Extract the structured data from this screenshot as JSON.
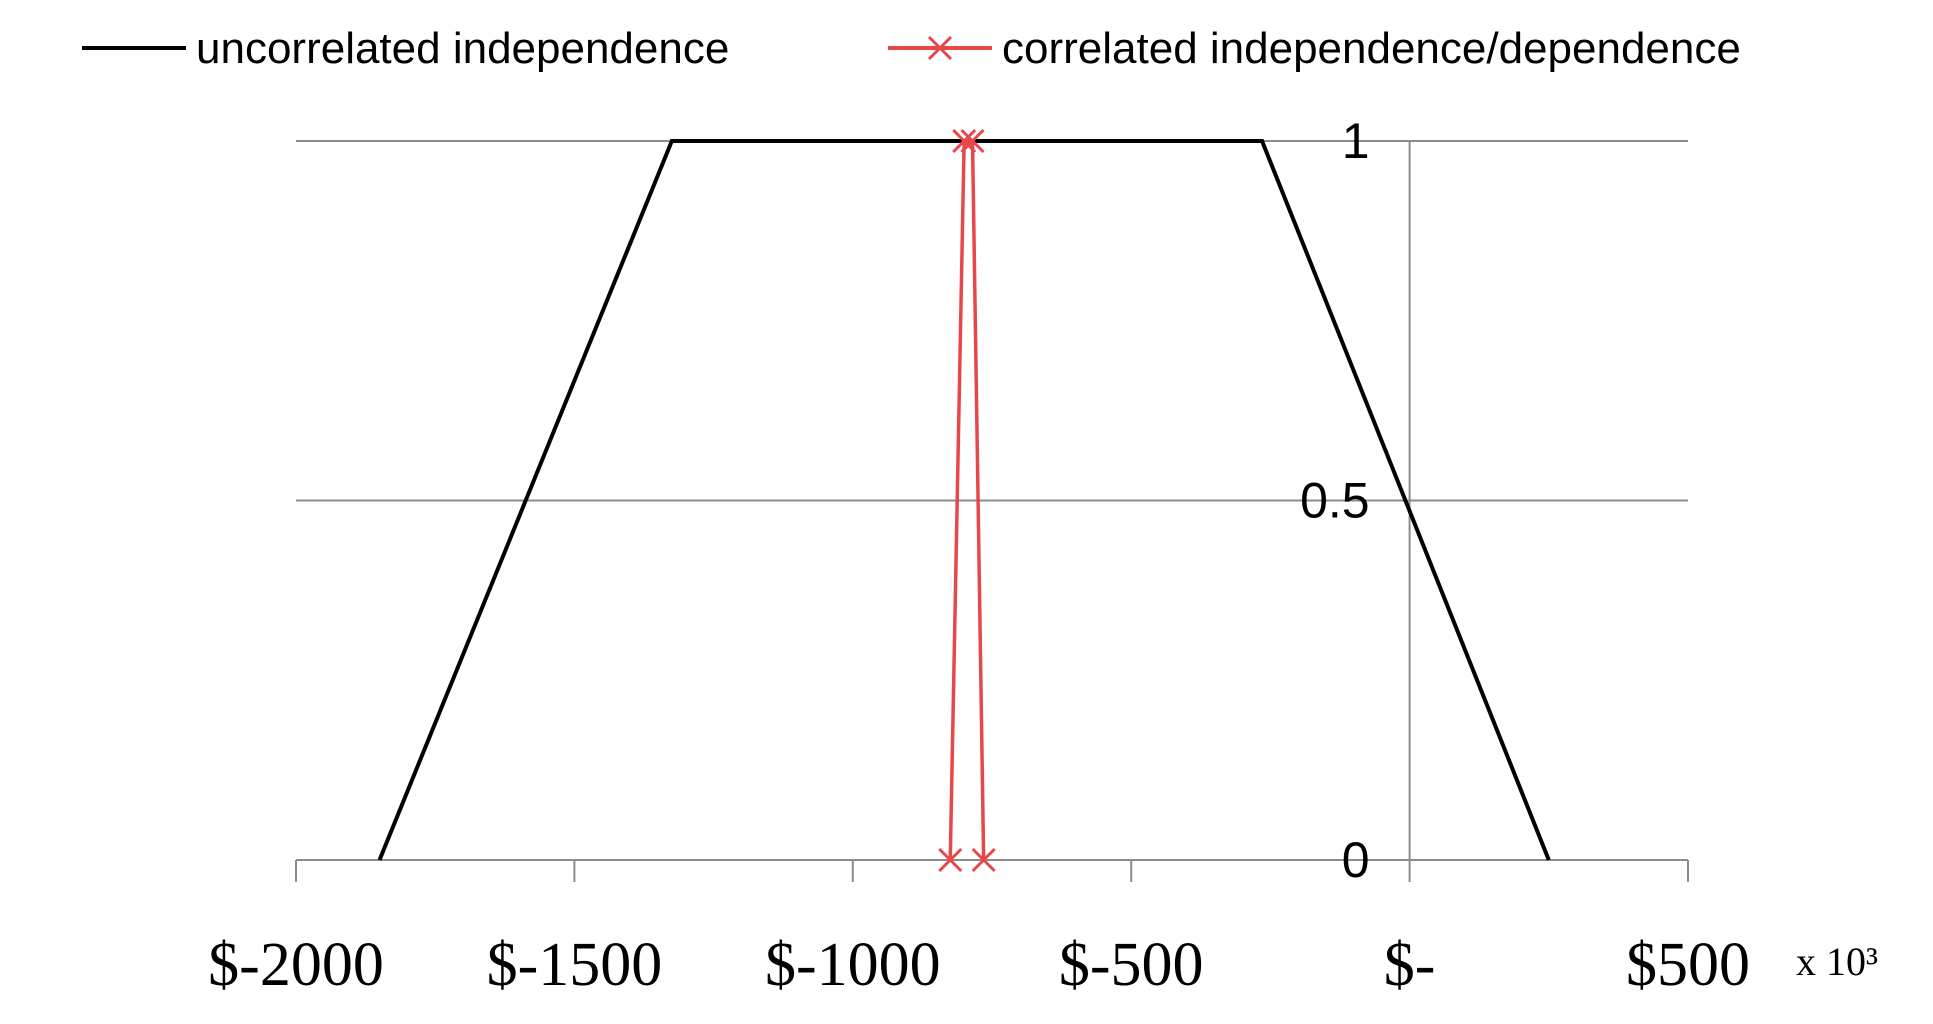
{
  "chart_data": {
    "type": "line",
    "title": "",
    "xlabel": "",
    "ylabel": "",
    "x_unit": "x 10³",
    "xlim": [
      -2000,
      500
    ],
    "ylim": [
      0,
      1
    ],
    "x_ticks": [
      {
        "value": -2000,
        "label": "$-2000"
      },
      {
        "value": -1500,
        "label": "$-1500"
      },
      {
        "value": -1000,
        "label": "$-1000"
      },
      {
        "value": -500,
        "label": "$-500"
      },
      {
        "value": 0,
        "label": "$-"
      },
      {
        "value": 500,
        "label": "$500"
      }
    ],
    "y_ticks": [
      {
        "value": 0,
        "label": "0"
      },
      {
        "value": 0.5,
        "label": "0.5"
      },
      {
        "value": 1,
        "label": "1"
      }
    ],
    "grid": true,
    "legend": "top",
    "series": [
      {
        "name": "uncorrelated independence",
        "color": "#000000",
        "marker": "none",
        "points": [
          [
            -1850,
            0
          ],
          [
            -1325,
            1
          ],
          [
            -265,
            1
          ],
          [
            250,
            0
          ]
        ]
      },
      {
        "name": "correlated independence/dependence",
        "color": "#e8474a",
        "marker": "x",
        "points": [
          [
            -825,
            0
          ],
          [
            -800,
            1
          ],
          [
            -785,
            1
          ],
          [
            -765,
            0
          ]
        ]
      }
    ]
  }
}
